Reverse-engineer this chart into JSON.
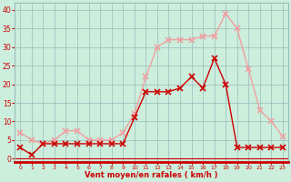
{
  "hours": [
    0,
    1,
    2,
    3,
    4,
    5,
    6,
    7,
    8,
    9,
    10,
    11,
    12,
    13,
    14,
    15,
    16,
    17,
    18,
    19,
    20,
    21,
    22,
    23
  ],
  "rafales": [
    7,
    5,
    4,
    5,
    7.5,
    7.5,
    5,
    5,
    5,
    7,
    12,
    22,
    30,
    32,
    32,
    32,
    33,
    33,
    39,
    35,
    24,
    13,
    10,
    6
  ],
  "moyen": [
    3,
    1,
    4,
    4,
    4,
    4,
    4,
    4,
    4,
    4,
    11,
    18,
    18,
    18,
    19,
    22,
    19,
    27,
    20,
    3,
    3,
    3,
    3,
    3
  ],
  "color_rafales": "#f0a0a0",
  "color_moyen": "#cc0000",
  "bg_color": "#cceedd",
  "grid_color": "#99bbbb",
  "xlabel": "Vent moyen/en rafales ( km/h )",
  "xlabel_color": "#cc0000",
  "tick_color": "#cc0000",
  "ylim": [
    -1,
    42
  ],
  "yticks": [
    0,
    5,
    10,
    15,
    20,
    25,
    30,
    35,
    40
  ],
  "marker": "+",
  "linewidth": 1.0,
  "markersize": 4
}
